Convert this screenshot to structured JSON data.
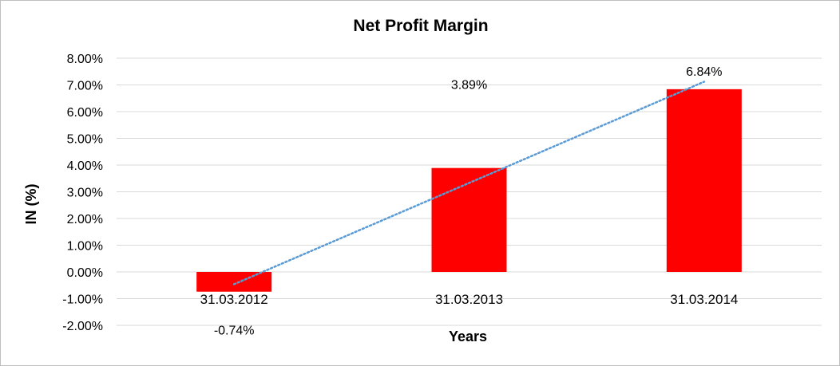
{
  "chart_data": {
    "type": "bar",
    "title": "Net Profit Margin",
    "xlabel": "Years",
    "ylabel": "IN (%)",
    "categories": [
      "31.03.2012",
      "31.03.2013",
      "31.03.2014"
    ],
    "values": [
      -0.74,
      3.89,
      6.84
    ],
    "data_labels": [
      "-0.74%",
      "3.89%",
      "6.84%"
    ],
    "ylim": [
      -2,
      8
    ],
    "yticks": [
      -2,
      -1,
      0,
      1,
      2,
      3,
      4,
      5,
      6,
      7,
      8
    ],
    "ytick_labels": [
      "-2.00%",
      "-1.00%",
      "0.00%",
      "1.00%",
      "2.00%",
      "3.00%",
      "4.00%",
      "5.00%",
      "6.00%",
      "7.00%",
      "8.00%"
    ],
    "bar_color": "#ff0000",
    "grid": true,
    "grid_color": "#d9d9d9",
    "trendline": {
      "type": "linear",
      "style": "dotted",
      "color": "#5b9bd5"
    },
    "legend": "none"
  }
}
